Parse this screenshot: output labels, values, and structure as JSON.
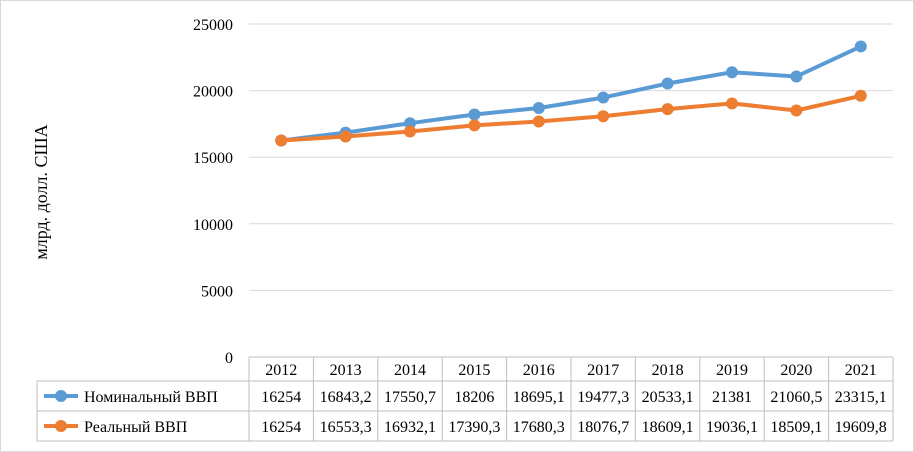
{
  "chart_data": {
    "type": "line",
    "ylabel": "млрд. долл. США",
    "xlabel": "",
    "title": "",
    "ylim": [
      0,
      25000
    ],
    "yticks": [
      "0",
      "5000",
      "10000",
      "15000",
      "20000",
      "25000"
    ],
    "grid": true,
    "legend": "data table below chart",
    "categories": [
      "2012",
      "2013",
      "2014",
      "2015",
      "2016",
      "2017",
      "2018",
      "2019",
      "2020",
      "2021"
    ],
    "series": [
      {
        "name": "Номинальный ВВП",
        "color": "#5b9bd5",
        "values": [
          16254,
          16843.2,
          17550.7,
          18206,
          18695.1,
          19477.3,
          20533.1,
          21381,
          21060.5,
          23315.1
        ],
        "labels": [
          "16254",
          "16843,2",
          "17550,7",
          "18206",
          "18695,1",
          "19477,3",
          "20533,1",
          "21381",
          "21060,5",
          "23315,1"
        ]
      },
      {
        "name": "Реальный ВВП",
        "color": "#ed7d31",
        "values": [
          16254,
          16553.3,
          16932.1,
          17390.3,
          17680.3,
          18076.7,
          18609.1,
          19036.1,
          18509.1,
          19609.8
        ],
        "labels": [
          "16254",
          "16553,3",
          "16932,1",
          "17390,3",
          "17680,3",
          "18076,7",
          "18609,1",
          "19036,1",
          "18509,1",
          "19609,8"
        ]
      }
    ]
  }
}
